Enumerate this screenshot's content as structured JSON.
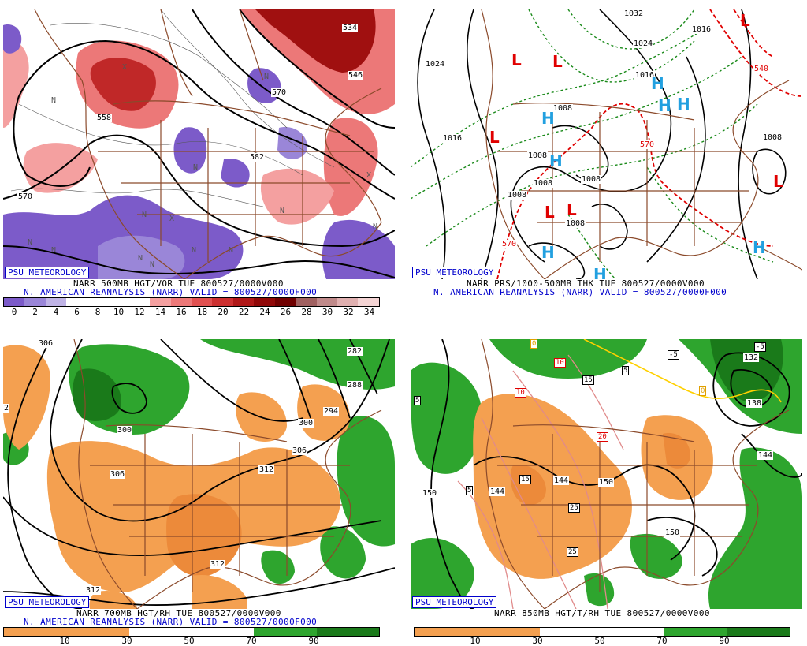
{
  "panels": [
    {
      "badge": "PSU METEOROLOGY",
      "line1": "NARR 500MB HGT/VOR TUE 800527/0000V000",
      "line2": "N. AMERICAN REANALYSIS (NARR) VALID = 800527/0000F000",
      "legend_labels": [
        "0",
        "2",
        "4",
        "6",
        "8",
        "10",
        "12",
        "14",
        "16",
        "18",
        "20",
        "22",
        "24",
        "26",
        "28",
        "30",
        "32",
        "34"
      ],
      "legend_colors": [
        "#7c5bc9",
        "#9a86d8",
        "#c0b4e6",
        "#ffffff",
        "#ffffff",
        "#ffffff",
        "#ffffff",
        "#f4a0a0",
        "#ec7878",
        "#e05050",
        "#cc3030",
        "#b01818",
        "#900808",
        "#700000",
        "#a06060",
        "#c08a8a",
        "#e0b0b0",
        "#f4d4d4"
      ],
      "contour_labels": [
        "534",
        "546",
        "570",
        "558",
        "582",
        "570",
        "570"
      ],
      "vort_marks": [
        "N",
        "N",
        "N",
        "N",
        "N",
        "N",
        "N",
        "N",
        "N",
        "N",
        "N",
        "N",
        "X",
        "X",
        "X"
      ]
    },
    {
      "badge": "PSU METEOROLOGY",
      "line1": "NARR PRS/1000-500MB THK TUE 800527/0000V000",
      "line2": "N. AMERICAN REANALYSIS (NARR) VALID = 800527/0000F000",
      "pressure_labels": [
        "1024",
        "1016",
        "1008",
        "1008",
        "1008",
        "1008",
        "1008",
        "1008",
        "1016",
        "1008",
        "1024",
        "1016",
        "1032"
      ],
      "thickness_labels": [
        "570",
        "540",
        "570"
      ],
      "centers": [
        "L",
        "L",
        "L",
        "L",
        "L",
        "L",
        "L",
        "H",
        "H",
        "H",
        "H",
        "H",
        "H",
        "H",
        "H"
      ]
    },
    {
      "badge": "PSU METEOROLOGY",
      "line1": "NARR 700MB HGT/RH TUE 800527/0000V000",
      "line2": "N. AMERICAN REANALYSIS (NARR) VALID = 800527/0000F000",
      "legend_labels": [
        "10",
        "30",
        "50",
        "70",
        "90"
      ],
      "contour_labels": [
        "306",
        "300",
        "306",
        "312",
        "282",
        "288",
        "294",
        "300",
        "306",
        "312",
        "312",
        "2"
      ]
    },
    {
      "badge": "PSU METEOROLOGY",
      "line1": "NARR 850MB HGT/T/RH TUE 800527/0000V000",
      "legend_labels": [
        "10",
        "30",
        "50",
        "70",
        "90"
      ],
      "contour_labels": [
        "150",
        "144",
        "150",
        "144",
        "150",
        "132",
        "138",
        "144"
      ],
      "temp_boxes": [
        "0",
        "10",
        "10",
        "15",
        "20",
        "15",
        "25",
        "25",
        "5",
        "5",
        "5",
        "-5",
        "-5",
        "0"
      ]
    }
  ],
  "colors": {
    "map_lines": "#8b4a2b",
    "badge_blue": "#0000cc",
    "rh_moist": "#2ea52e",
    "rh_dry": "#f4a050",
    "thickness_warm": "#e00000",
    "thickness_cold": "#1a8a1a",
    "high": "#22a0e0",
    "low": "#e00000"
  }
}
